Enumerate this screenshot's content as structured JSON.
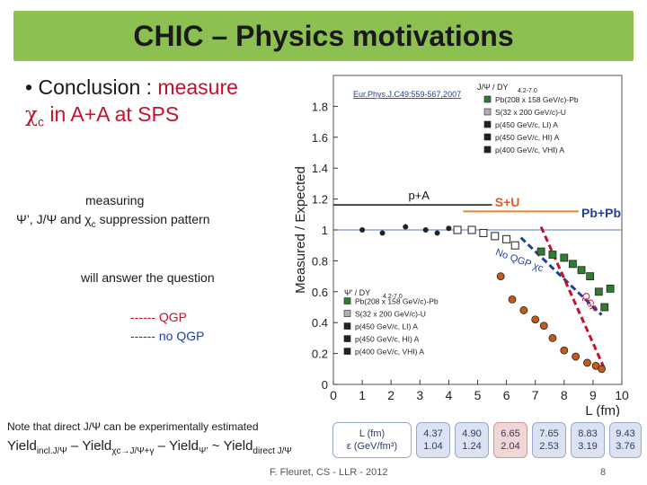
{
  "slide": {
    "title": "CHIC – Physics motivations",
    "bullet_dot": "•",
    "bullet_text_1": "Conclusion :",
    "bullet_text_red": "measure",
    "bullet_chi": "χ",
    "bullet_sub": "c",
    "bullet_text_2": "in A+A at SPS",
    "measuring_line1": "measuring",
    "measuring_line2_psi": "Ψ’, J/Ψ and χ",
    "measuring_line2_sub": "c",
    "measuring_line2_end": "suppression pattern",
    "answer": "will answer the question",
    "qgp_legend": "------ QGP",
    "noqgp_legend": "------ no QGP",
    "note": "Note that direct J/Ψ can be experimentally estimated",
    "yield_formula": "Yield",
    "yield_sub1": "incl.J/Ψ",
    "yield_mid": "– Yield",
    "yield_sub2": "χc→J/Ψ+γ",
    "yield_mid2": "– Yield",
    "yield_sub3": "Ψ’",
    "yield_tilde": "~ Yield",
    "yield_sub4": "direct J/Ψ",
    "footer": "F. Fleuret, CS - LLR - 2012",
    "page": "8"
  },
  "plot_labels": {
    "reference": "Eur.Phys.J.C49:559-567,2007",
    "p_a": "p+A",
    "s_u": "S+U",
    "pb_pb": "Pb+Pb",
    "no_qgp": "No QGP",
    "chi_c": "χc",
    "qgp": "QGP",
    "legend_top_title": "J/Ψ / DY",
    "legend_top_sub": "4.2-7.0",
    "legend_bottom_title": "Ψ’ / DY",
    "legend_bottom_sub": "4.2-7.0",
    "legend_entries": [
      "Pb(208 x 158 GeV/c)-Pb",
      "S(32 x 200 GeV/c)-U",
      "p(450 GeV/c, LI) A",
      "p(450 GeV/c, HI) A",
      "p(400 GeV/c, VHI) A"
    ]
  },
  "table": {
    "header": [
      "L (fm)",
      "ε (GeV/fm³)"
    ],
    "columns": [
      {
        "L": "4.37",
        "e": "1.04"
      },
      {
        "L": "4.90",
        "e": "1.24"
      },
      {
        "L": "6.65",
        "e": "2.04"
      },
      {
        "L": "7.65",
        "e": "2.53"
      },
      {
        "L": "8.83",
        "e": "3.19"
      },
      {
        "L": "9.43",
        "e": "3.76"
      }
    ]
  },
  "chart_data": {
    "type": "scatter",
    "title": "",
    "xlabel": "L (fm)",
    "ylabel": "Measured / Expected",
    "xlim": [
      0,
      10
    ],
    "ylim": [
      0,
      2
    ],
    "xticks": [
      "0",
      "1",
      "2",
      "3",
      "4",
      "5",
      "6",
      "7",
      "8",
      "9",
      "10"
    ],
    "yticks": [
      "0",
      "0.2",
      "0.4",
      "0.6",
      "0.8",
      "1",
      "1.2",
      "1.4",
      "1.6",
      "1.8"
    ],
    "series": [
      {
        "name": "J/Ψ Pb-Pb",
        "color": "#2e7d32",
        "marker": "square",
        "points": [
          [
            7.2,
            0.86
          ],
          [
            7.6,
            0.84
          ],
          [
            8.0,
            0.82
          ],
          [
            8.3,
            0.78
          ],
          [
            8.6,
            0.74
          ],
          [
            8.9,
            0.7
          ],
          [
            9.2,
            0.6
          ],
          [
            9.4,
            0.5
          ],
          [
            9.6,
            0.62
          ]
        ]
      },
      {
        "name": "J/Ψ S-U",
        "color": "#444444",
        "marker": "open-square",
        "points": [
          [
            4.3,
            1.0
          ],
          [
            4.8,
            1.0
          ],
          [
            5.2,
            0.98
          ],
          [
            5.6,
            0.96
          ],
          [
            6.0,
            0.94
          ],
          [
            6.3,
            0.9
          ]
        ]
      },
      {
        "name": "J/Ψ p-A",
        "color": "#222222",
        "marker": "black",
        "points": [
          [
            1.0,
            1.0
          ],
          [
            1.7,
            0.98
          ],
          [
            2.5,
            1.02
          ],
          [
            3.2,
            1.0
          ],
          [
            3.6,
            0.98
          ],
          [
            4.0,
            1.01
          ]
        ]
      },
      {
        "name": "Ψ’ Pb-Pb",
        "color": "#c15a1a",
        "marker": "circle",
        "points": [
          [
            5.8,
            0.7
          ],
          [
            6.2,
            0.55
          ],
          [
            6.6,
            0.48
          ],
          [
            7.0,
            0.42
          ],
          [
            7.3,
            0.38
          ],
          [
            7.6,
            0.3
          ],
          [
            8.0,
            0.22
          ],
          [
            8.4,
            0.18
          ],
          [
            8.8,
            0.14
          ],
          [
            9.1,
            0.12
          ],
          [
            9.3,
            0.1
          ]
        ]
      }
    ]
  },
  "colors": {
    "title_bg": "#8cc152",
    "accent_red": "#c8102e",
    "accent_blue": "#1f3f99"
  }
}
